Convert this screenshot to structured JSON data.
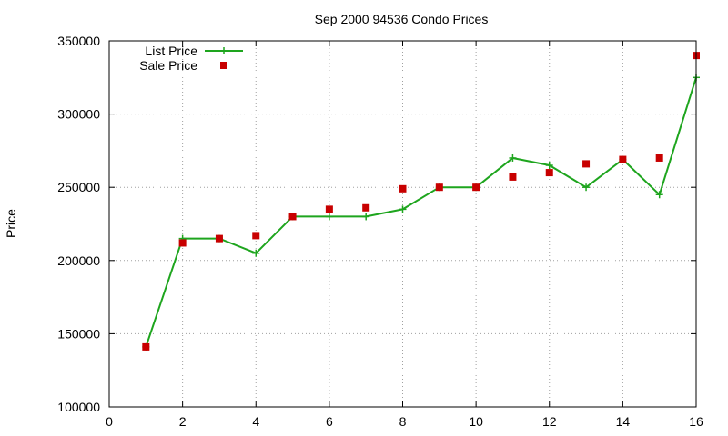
{
  "chart_data": {
    "type": "line",
    "title": "Sep 2000 94536 Condo Prices",
    "xlabel": "",
    "ylabel": "Price",
    "xlim": [
      0,
      16
    ],
    "ylim": [
      100000,
      350000
    ],
    "xticks": [
      0,
      2,
      4,
      6,
      8,
      10,
      12,
      14,
      16
    ],
    "yticks": [
      100000,
      150000,
      200000,
      250000,
      300000,
      350000
    ],
    "grid": true,
    "legend_position": "top-left",
    "series": [
      {
        "name": "List Price",
        "style": "line-with-plus-markers",
        "color": "#1ea51e",
        "x": [
          1,
          2,
          3,
          4,
          5,
          6,
          7,
          8,
          9,
          10,
          11,
          12,
          13,
          14,
          15,
          16
        ],
        "y": [
          141000,
          215000,
          215000,
          205000,
          230000,
          230000,
          230000,
          235000,
          250000,
          250000,
          270000,
          265000,
          250000,
          269000,
          245000,
          325000
        ]
      },
      {
        "name": "Sale Price",
        "style": "square-markers",
        "color": "#c80000",
        "x": [
          1,
          2,
          3,
          4,
          5,
          6,
          7,
          8,
          9,
          10,
          11,
          12,
          13,
          14,
          15,
          16
        ],
        "y": [
          141000,
          212000,
          215000,
          217000,
          230000,
          235000,
          236000,
          249000,
          250000,
          250000,
          257000,
          260000,
          266000,
          269000,
          270000,
          340000
        ]
      }
    ]
  }
}
